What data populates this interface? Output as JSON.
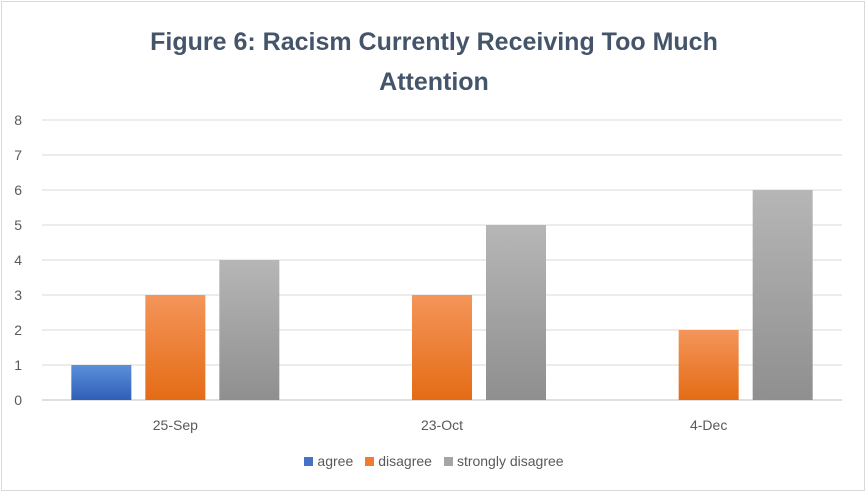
{
  "chart_data": {
    "type": "bar",
    "title_line1": "Figure 6: Racism Currently Receiving Too Much",
    "title_line2": "Attention",
    "categories": [
      "25-Sep",
      "23-Oct",
      "4-Dec"
    ],
    "series": [
      {
        "name": "agree",
        "values": [
          1,
          0,
          0
        ],
        "color": "#4472c4"
      },
      {
        "name": "disagree",
        "values": [
          3,
          3,
          2
        ],
        "color": "#ed7d31"
      },
      {
        "name": "strongly disagree",
        "values": [
          4,
          5,
          6
        ],
        "color": "#a5a5a5"
      }
    ],
    "ylim": [
      0,
      8
    ],
    "yticks": [
      0,
      1,
      2,
      3,
      4,
      5,
      6,
      7,
      8
    ],
    "grid": true,
    "legend_position": "bottom"
  }
}
